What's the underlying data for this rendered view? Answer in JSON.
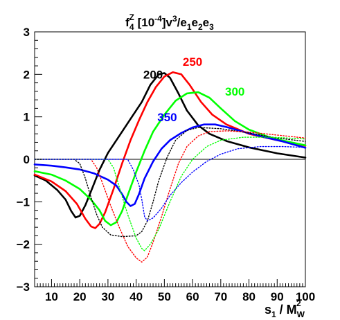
{
  "chart_data": {
    "type": "line",
    "title": {
      "main": "f",
      "sup": "Z",
      "sub": "4",
      "rest": " [10",
      "exp": "-4",
      "tail": "]v",
      "tail_exp": "3",
      "tail2": "/e",
      "e1": "1",
      "e": "e",
      "e2": "2",
      "e3": "3"
    },
    "xlabel": {
      "base": "s",
      "sub": "1",
      "mid": " / M",
      "msub": "W",
      "msup": "2"
    },
    "ylabel": "",
    "xlim": [
      4,
      100
    ],
    "ylim": [
      -3,
      3
    ],
    "xticks": [
      10,
      20,
      30,
      40,
      50,
      60,
      70,
      80,
      90,
      100
    ],
    "yticks": [
      -3,
      -2,
      -1,
      0,
      1,
      2,
      3
    ],
    "zero_line": true,
    "grid": false,
    "series": [
      {
        "name": "200",
        "color": "#000000",
        "style": "solid",
        "points": [
          [
            4,
            -0.38
          ],
          [
            8,
            -0.5
          ],
          [
            12,
            -0.72
          ],
          [
            15,
            -0.95
          ],
          [
            17,
            -1.22
          ],
          [
            18.5,
            -1.37
          ],
          [
            20,
            -1.33
          ],
          [
            22,
            -1.08
          ],
          [
            24,
            -0.75
          ],
          [
            27,
            -0.25
          ],
          [
            30,
            0.15
          ],
          [
            34,
            0.55
          ],
          [
            38,
            0.95
          ],
          [
            42,
            1.35
          ],
          [
            45,
            1.75
          ],
          [
            48,
            2.0
          ],
          [
            50,
            2.03
          ],
          [
            52,
            1.92
          ],
          [
            55,
            1.55
          ],
          [
            58,
            1.15
          ],
          [
            62,
            0.8
          ],
          [
            66,
            0.6
          ],
          [
            72,
            0.43
          ],
          [
            80,
            0.28
          ],
          [
            90,
            0.14
          ],
          [
            100,
            0.04
          ]
        ]
      },
      {
        "name": "250",
        "color": "#ff0000",
        "style": "solid",
        "points": [
          [
            4,
            -0.36
          ],
          [
            10,
            -0.52
          ],
          [
            15,
            -0.75
          ],
          [
            19,
            -1.05
          ],
          [
            22,
            -1.4
          ],
          [
            24,
            -1.58
          ],
          [
            25.5,
            -1.62
          ],
          [
            27,
            -1.52
          ],
          [
            29,
            -1.25
          ],
          [
            32,
            -0.7
          ],
          [
            35,
            -0.1
          ],
          [
            38,
            0.45
          ],
          [
            41,
            0.92
          ],
          [
            44,
            1.35
          ],
          [
            47,
            1.7
          ],
          [
            50,
            1.95
          ],
          [
            53,
            2.05
          ],
          [
            56,
            2.0
          ],
          [
            59,
            1.75
          ],
          [
            63,
            1.35
          ],
          [
            67,
            1.05
          ],
          [
            72,
            0.82
          ],
          [
            80,
            0.6
          ],
          [
            90,
            0.45
          ],
          [
            100,
            0.32
          ]
        ]
      },
      {
        "name": "300",
        "color": "#00ff00",
        "style": "solid",
        "points": [
          [
            4,
            -0.28
          ],
          [
            10,
            -0.36
          ],
          [
            15,
            -0.5
          ],
          [
            20,
            -0.7
          ],
          [
            24,
            -0.95
          ],
          [
            27,
            -1.2
          ],
          [
            29,
            -1.45
          ],
          [
            31,
            -1.55
          ],
          [
            33,
            -1.48
          ],
          [
            35,
            -1.22
          ],
          [
            37,
            -0.85
          ],
          [
            40,
            -0.3
          ],
          [
            43,
            0.2
          ],
          [
            46,
            0.65
          ],
          [
            50,
            1.05
          ],
          [
            54,
            1.38
          ],
          [
            58,
            1.55
          ],
          [
            62,
            1.58
          ],
          [
            66,
            1.45
          ],
          [
            70,
            1.2
          ],
          [
            75,
            0.9
          ],
          [
            80,
            0.7
          ],
          [
            88,
            0.5
          ],
          [
            95,
            0.4
          ],
          [
            100,
            0.33
          ]
        ]
      },
      {
        "name": "350",
        "color": "#0000ff",
        "style": "solid",
        "points": [
          [
            4,
            -0.12
          ],
          [
            10,
            -0.15
          ],
          [
            15,
            -0.19
          ],
          [
            20,
            -0.24
          ],
          [
            25,
            -0.33
          ],
          [
            30,
            -0.48
          ],
          [
            33,
            -0.62
          ],
          [
            35,
            -0.82
          ],
          [
            36.5,
            -1.0
          ],
          [
            38,
            -1.1
          ],
          [
            39.5,
            -1.05
          ],
          [
            41,
            -0.82
          ],
          [
            43,
            -0.45
          ],
          [
            46,
            -0.05
          ],
          [
            49,
            0.25
          ],
          [
            52,
            0.45
          ],
          [
            56,
            0.62
          ],
          [
            60,
            0.75
          ],
          [
            64,
            0.82
          ],
          [
            68,
            0.82
          ],
          [
            72,
            0.76
          ],
          [
            78,
            0.65
          ],
          [
            85,
            0.53
          ],
          [
            92,
            0.42
          ],
          [
            100,
            0.27
          ]
        ]
      },
      {
        "name": "",
        "color": "#000000",
        "style": "dotted",
        "points": [
          [
            4,
            0
          ],
          [
            18,
            0
          ],
          [
            20,
            -0.1
          ],
          [
            22,
            -0.45
          ],
          [
            24,
            -0.9
          ],
          [
            26,
            -1.3
          ],
          [
            28,
            -1.6
          ],
          [
            31,
            -1.78
          ],
          [
            35,
            -1.82
          ],
          [
            40,
            -1.8
          ],
          [
            42,
            -1.7
          ],
          [
            44,
            -1.45
          ],
          [
            46,
            -1.0
          ],
          [
            48,
            -0.5
          ],
          [
            51,
            0.05
          ],
          [
            54,
            0.45
          ],
          [
            58,
            0.68
          ],
          [
            62,
            0.75
          ],
          [
            70,
            0.72
          ],
          [
            80,
            0.62
          ],
          [
            90,
            0.5
          ],
          [
            100,
            0.42
          ]
        ]
      },
      {
        "name": "",
        "color": "#ff0000",
        "style": "dotted",
        "points": [
          [
            4,
            0
          ],
          [
            24,
            0
          ],
          [
            26,
            -0.2
          ],
          [
            28,
            -0.55
          ],
          [
            31,
            -1.1
          ],
          [
            34,
            -1.6
          ],
          [
            37,
            -2.05
          ],
          [
            40,
            -2.32
          ],
          [
            42,
            -2.42
          ],
          [
            44,
            -2.3
          ],
          [
            46,
            -1.95
          ],
          [
            49,
            -1.35
          ],
          [
            52,
            -0.7
          ],
          [
            55,
            -0.1
          ],
          [
            58,
            0.3
          ],
          [
            62,
            0.55
          ],
          [
            66,
            0.65
          ],
          [
            72,
            0.67
          ],
          [
            80,
            0.64
          ],
          [
            90,
            0.57
          ],
          [
            100,
            0.5
          ]
        ]
      },
      {
        "name": "",
        "color": "#00ff00",
        "style": "dotted",
        "points": [
          [
            4,
            0
          ],
          [
            30,
            0
          ],
          [
            32,
            -0.2
          ],
          [
            34,
            -0.65
          ],
          [
            37,
            -1.3
          ],
          [
            40,
            -1.85
          ],
          [
            42,
            -2.1
          ],
          [
            43,
            -2.15
          ],
          [
            45,
            -2.0
          ],
          [
            48,
            -1.65
          ],
          [
            52,
            -1.0
          ],
          [
            56,
            -0.4
          ],
          [
            60,
            0.0
          ],
          [
            65,
            0.3
          ],
          [
            70,
            0.45
          ],
          [
            78,
            0.52
          ],
          [
            88,
            0.52
          ],
          [
            100,
            0.48
          ]
        ]
      },
      {
        "name": "",
        "color": "#0000ff",
        "style": "dotted",
        "points": [
          [
            4,
            0
          ],
          [
            37,
            0
          ],
          [
            39,
            -0.25
          ],
          [
            41,
            -0.6
          ],
          [
            42,
            -0.95
          ],
          [
            43,
            -1.35
          ],
          [
            44,
            -1.45
          ],
          [
            46,
            -1.38
          ],
          [
            49,
            -1.15
          ],
          [
            52,
            -0.85
          ],
          [
            56,
            -0.55
          ],
          [
            60,
            -0.3
          ],
          [
            65,
            -0.05
          ],
          [
            70,
            0.12
          ],
          [
            76,
            0.25
          ],
          [
            84,
            0.3
          ],
          [
            92,
            0.3
          ],
          [
            100,
            0.28
          ]
        ]
      }
    ],
    "labels": [
      {
        "text": "200",
        "color": "#000000",
        "x": 46,
        "y": 1.9
      },
      {
        "text": "250",
        "color": "#ff0000",
        "x": 60,
        "y": 2.2
      },
      {
        "text": "300",
        "color": "#00ff00",
        "x": 75,
        "y": 1.5
      },
      {
        "text": "350",
        "color": "#0000ff",
        "x": 51,
        "y": 0.9
      }
    ]
  }
}
